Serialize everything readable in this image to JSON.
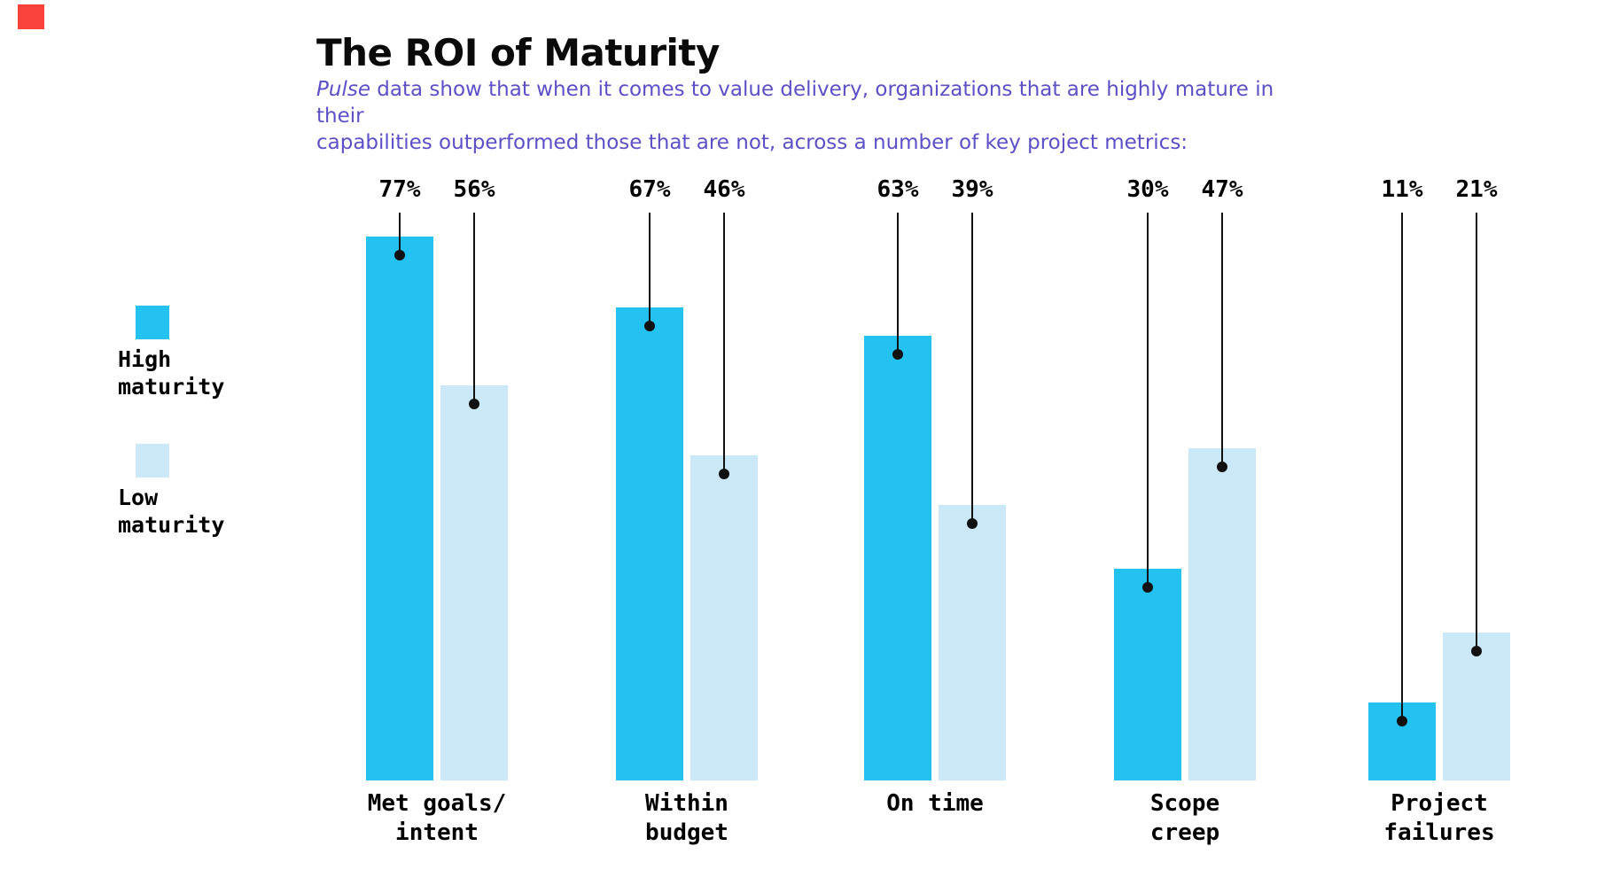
{
  "page": {
    "background": "#FFFFFF"
  },
  "brand": {
    "accent_square_color": "#F9423A"
  },
  "header": {
    "title": "The ROI of Maturity",
    "subtitle_italic_word": "Pulse",
    "subtitle_line1_rest": " data show that when it comes to value delivery, organizations that are highly mature in their",
    "subtitle_line2": "capabilities outperformed those that are not, across a number of key project metrics:",
    "subtitle_color": "#5B50C8"
  },
  "legend": {
    "items": [
      {
        "label": "High\nmaturity",
        "name": "High maturity",
        "color": "#24C2F0"
      },
      {
        "label": "Low\nmaturity",
        "name": "Low maturity",
        "color": "#CBE8F9"
      }
    ]
  },
  "chart_data": {
    "type": "bar",
    "title": "The ROI of Maturity",
    "subtitle": "Pulse data show that when it comes to value delivery, organizations that are highly mature in their capabilities outperformed those that are not, across a number of key project metrics:",
    "categories": [
      "Met goals/intent",
      "Within budget",
      "On time",
      "Scope creep",
      "Project failures"
    ],
    "category_label_lines": [
      [
        "Met goals/",
        "intent"
      ],
      [
        "Within",
        "budget"
      ],
      [
        "On time"
      ],
      [
        "Scope",
        "creep"
      ],
      [
        "Project",
        "failures"
      ]
    ],
    "series": [
      {
        "name": "High maturity",
        "color": "#24C2F0",
        "values": [
          77,
          67,
          63,
          30,
          11
        ]
      },
      {
        "name": "Low maturity",
        "color": "#CBE8F9",
        "values": [
          56,
          46,
          39,
          47,
          21
        ]
      }
    ],
    "value_suffix": "%",
    "value_labels_shown": [
      "77%",
      "56%",
      "67%",
      "46%",
      "63%",
      "39%",
      "30%",
      "47%",
      "11%",
      "21%"
    ],
    "xlabel": "",
    "ylabel": "",
    "ylim": [
      0,
      100
    ],
    "grid": false,
    "axis_shown": false,
    "legend_position": "left",
    "annotation_style": "leader line from value label down to dot inside bar"
  }
}
